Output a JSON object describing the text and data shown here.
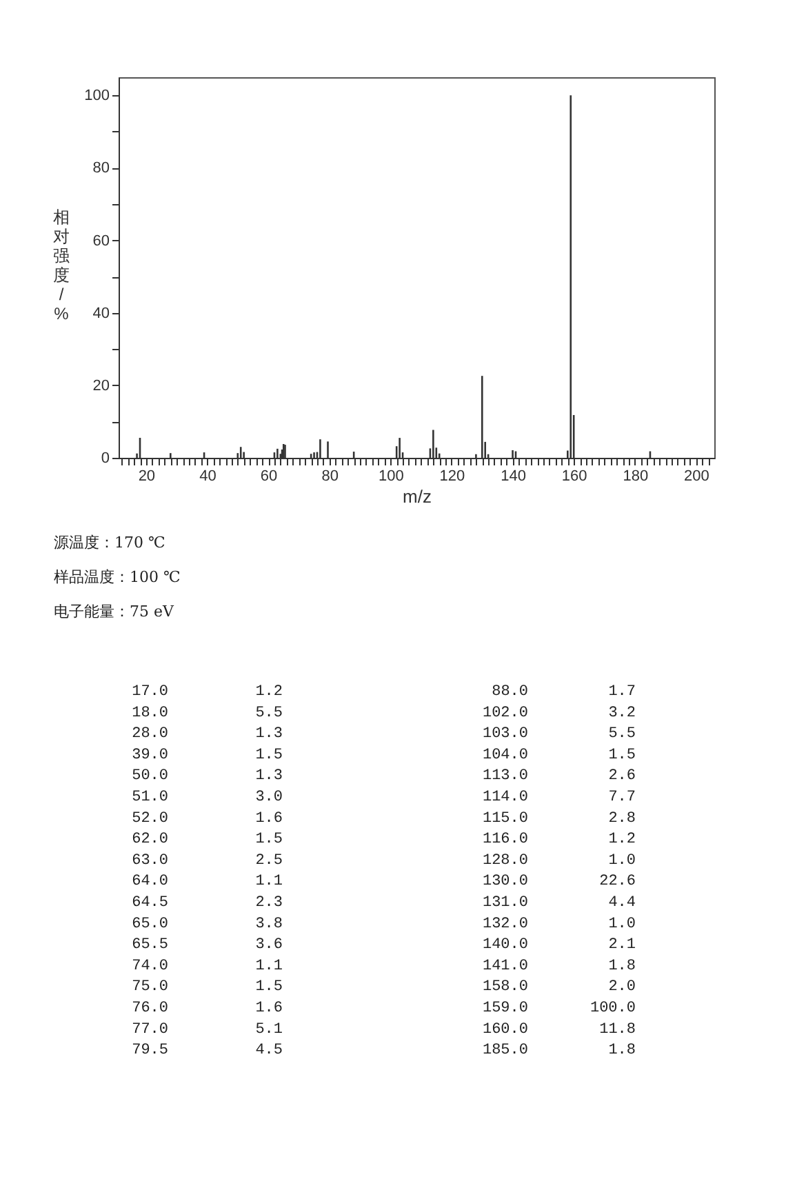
{
  "chart_data": [
    {
      "type": "bar",
      "xlabel": "m/z",
      "ylabel": "相对强度/%",
      "x": [
        17.0,
        18.0,
        28.0,
        39.0,
        50.0,
        51.0,
        52.0,
        62.0,
        63.0,
        64.0,
        64.5,
        65.0,
        65.5,
        74.0,
        75.0,
        76.0,
        77.0,
        79.5,
        88.0,
        102.0,
        103.0,
        104.0,
        113.0,
        114.0,
        115.0,
        116.0,
        128.0,
        130.0,
        131.0,
        132.0,
        140.0,
        141.0,
        158.0,
        159.0,
        160.0,
        185.0
      ],
      "values": [
        1.2,
        5.5,
        1.3,
        1.5,
        1.3,
        3.0,
        1.6,
        1.5,
        2.5,
        1.1,
        2.3,
        3.8,
        3.6,
        1.1,
        1.5,
        1.6,
        5.1,
        4.5,
        1.7,
        3.2,
        5.5,
        1.5,
        2.6,
        7.7,
        2.8,
        1.2,
        1.0,
        22.6,
        4.4,
        1.0,
        2.1,
        1.8,
        2.0,
        100.0,
        11.8,
        1.8
      ],
      "color": "#333333",
      "xlim": [
        11,
        206
      ],
      "xticks": [
        {
          "value": 12,
          "label": null
        },
        {
          "value": 14,
          "label": null
        },
        {
          "value": 16,
          "label": null
        },
        {
          "value": 18,
          "label": null
        },
        20,
        {
          "value": 22,
          "label": null
        },
        {
          "value": 24,
          "label": null
        },
        {
          "value": 26,
          "label": null
        },
        {
          "value": 28,
          "label": null
        },
        {
          "value": 30,
          "label": null
        },
        {
          "value": 32,
          "label": null
        },
        {
          "value": 34,
          "label": null
        },
        {
          "value": 36,
          "label": null
        },
        {
          "value": 38,
          "label": null
        },
        40,
        {
          "value": 42,
          "label": null
        },
        {
          "value": 44,
          "label": null
        },
        {
          "value": 46,
          "label": null
        },
        {
          "value": 48,
          "label": null
        },
        {
          "value": 50,
          "label": null
        },
        {
          "value": 52,
          "label": null
        },
        {
          "value": 54,
          "label": null
        },
        {
          "value": 56,
          "label": null
        },
        {
          "value": 58,
          "label": null
        },
        60,
        {
          "value": 62,
          "label": null
        },
        {
          "value": 64,
          "label": null
        },
        {
          "value": 66,
          "label": null
        },
        {
          "value": 68,
          "label": null
        },
        {
          "value": 70,
          "label": null
        },
        {
          "value": 72,
          "label": null
        },
        {
          "value": 74,
          "label": null
        },
        {
          "value": 76,
          "label": null
        },
        {
          "value": 78,
          "label": null
        },
        80,
        {
          "value": 82,
          "label": null
        },
        {
          "value": 84,
          "label": null
        },
        {
          "value": 86,
          "label": null
        },
        {
          "value": 88,
          "label": null
        },
        {
          "value": 90,
          "label": null
        },
        {
          "value": 92,
          "label": null
        },
        {
          "value": 94,
          "label": null
        },
        {
          "value": 96,
          "label": null
        },
        {
          "value": 98,
          "label": null
        },
        100,
        {
          "value": 102,
          "label": null
        },
        {
          "value": 104,
          "label": null
        },
        {
          "value": 106,
          "label": null
        },
        {
          "value": 108,
          "label": null
        },
        {
          "value": 110,
          "label": null
        },
        {
          "value": 112,
          "label": null
        },
        {
          "value": 114,
          "label": null
        },
        {
          "value": 116,
          "label": null
        },
        {
          "value": 118,
          "label": null
        },
        120,
        {
          "value": 122,
          "label": null
        },
        {
          "value": 124,
          "label": null
        },
        {
          "value": 126,
          "label": null
        },
        {
          "value": 128,
          "label": null
        },
        {
          "value": 130,
          "label": null
        },
        {
          "value": 132,
          "label": null
        },
        {
          "value": 134,
          "label": null
        },
        {
          "value": 136,
          "label": null
        },
        {
          "value": 138,
          "label": null
        },
        140,
        {
          "value": 142,
          "label": null
        },
        {
          "value": 144,
          "label": null
        },
        {
          "value": 146,
          "label": null
        },
        {
          "value": 148,
          "label": null
        },
        {
          "value": 150,
          "label": null
        },
        {
          "value": 152,
          "label": null
        },
        {
          "value": 154,
          "label": null
        },
        {
          "value": 156,
          "label": null
        },
        {
          "value": 158,
          "label": null
        },
        160,
        {
          "value": 162,
          "label": null
        },
        {
          "value": 164,
          "label": null
        },
        {
          "value": 166,
          "label": null
        },
        {
          "value": 168,
          "label": null
        },
        {
          "value": 170,
          "label": null
        },
        {
          "value": 172,
          "label": null
        },
        {
          "value": 174,
          "label": null
        },
        {
          "value": 176,
          "label": null
        },
        {
          "value": 178,
          "label": null
        },
        180,
        {
          "value": 182,
          "label": null
        },
        {
          "value": 184,
          "label": null
        },
        {
          "value": 186,
          "label": null
        },
        {
          "value": 188,
          "label": null
        },
        {
          "value": 190,
          "label": null
        },
        {
          "value": 192,
          "label": null
        },
        {
          "value": 194,
          "label": null
        },
        {
          "value": 196,
          "label": null
        },
        {
          "value": 198,
          "label": null
        },
        200,
        {
          "value": 202,
          "label": null
        },
        {
          "value": 204,
          "label": null
        }
      ],
      "ylim": [
        0,
        105
      ],
      "yticks": [
        0,
        {
          "value": 10,
          "label": null
        },
        20,
        {
          "value": 30,
          "label": null
        },
        40,
        {
          "value": 50,
          "label": null
        },
        60,
        {
          "value": 70,
          "label": null
        },
        80,
        {
          "value": 90,
          "label": null
        },
        100
      ],
      "grid": false,
      "annotations": [
        "源温度：170 ℃",
        "样品温度：100 ℃",
        "电子能量：75 eV"
      ]
    },
    {
      "type": "other",
      "value_labels": [
        "1.2",
        "5.5",
        "1.3",
        "1.5",
        "1.3",
        "3.0",
        "1.6",
        "1.5",
        "2.5",
        "1.1",
        "2.3",
        "3.8",
        "3.6",
        "1.1",
        "1.5",
        "1.6",
        "5.1",
        "4.5",
        "1.7",
        "3.2",
        "5.5",
        "1.5",
        "2.6",
        "7.7",
        "2.8",
        "1.2",
        "1.0",
        "22.6",
        "4.4",
        "1.0",
        "2.1",
        "1.8",
        "2.0",
        "100.0",
        "11.8",
        "1.8"
      ],
      "categories": [
        "17.0",
        "18.0",
        "28.0",
        "39.0",
        "50.0",
        "51.0",
        "52.0",
        "62.0",
        "63.0",
        "64.0",
        "64.5",
        "65.0",
        "65.5",
        "74.0",
        "75.0",
        "76.0",
        "77.0",
        "79.5",
        "88.0",
        "102.0",
        "103.0",
        "104.0",
        "113.0",
        "114.0",
        "115.0",
        "116.0",
        "128.0",
        "130.0",
        "131.0",
        "132.0",
        "140.0",
        "141.0",
        "158.0",
        "159.0",
        "160.0",
        "185.0"
      ],
      "values": [
        1.2,
        5.5,
        1.3,
        1.5,
        1.3,
        3.0,
        1.6,
        1.5,
        2.5,
        1.1,
        2.3,
        3.8,
        3.6,
        1.1,
        1.5,
        1.6,
        5.1,
        4.5,
        1.7,
        3.2,
        5.5,
        1.5,
        2.6,
        7.7,
        2.8,
        1.2,
        1.0,
        22.6,
        4.4,
        1.0,
        2.1,
        1.8,
        2.0,
        100.0,
        11.8,
        1.8
      ]
    }
  ]
}
